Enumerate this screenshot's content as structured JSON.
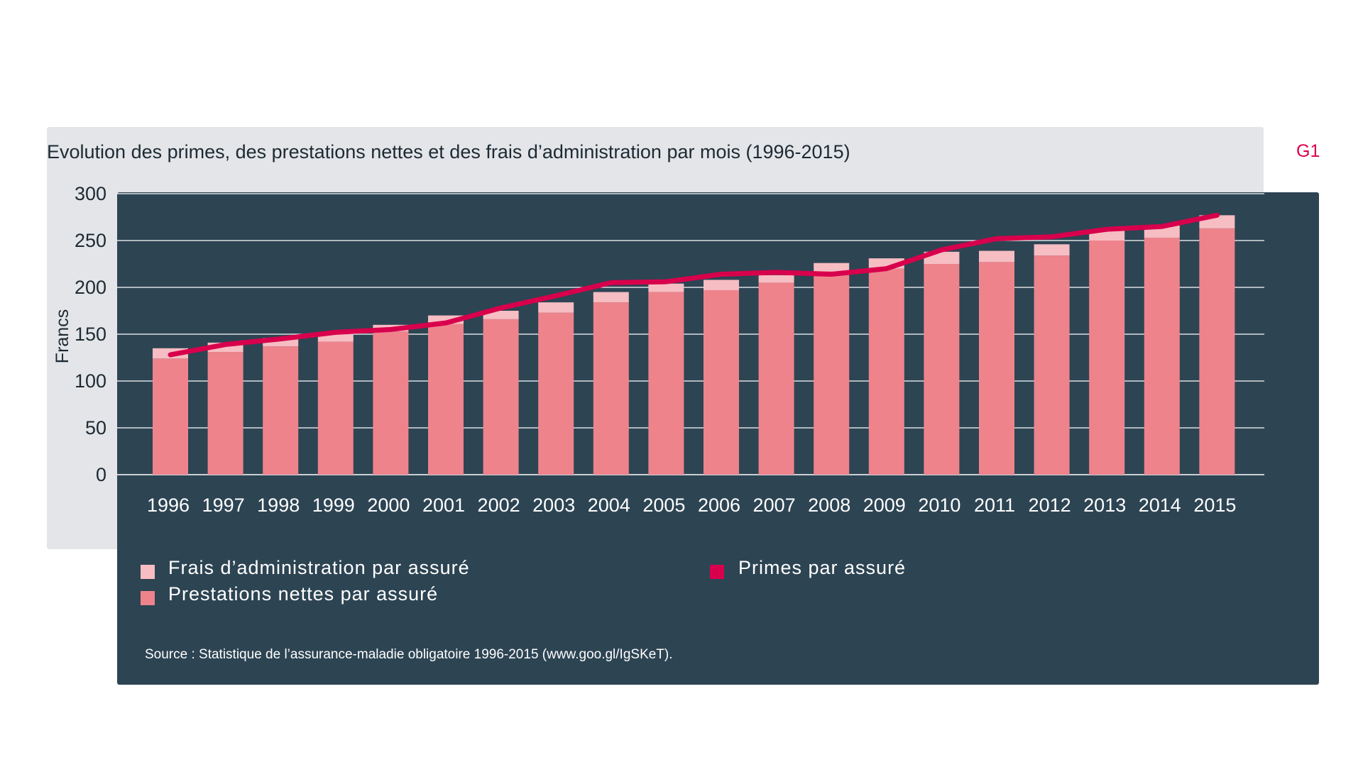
{
  "figure": {
    "title": "Evolution des primes, des prestations nettes et des frais d’administration par mois (1996-2015)",
    "code": "G1",
    "source": "Source : Statistique de l’assurance-maladie obligatoire 1996-2015 (www.goo.gl/IgSKeT)."
  },
  "colors": {
    "prestations": "#ee838c",
    "frais": "#f6bdc2",
    "primes": "#d8004c",
    "panel_dark": "#2a4251",
    "panel_light": "#e3e5e8",
    "gridline": "#ffffff"
  },
  "chart_data": {
    "type": "bar",
    "ylabel": "Francs",
    "xlabel": "",
    "ylim": [
      0,
      300
    ],
    "yticks": [
      0,
      50,
      100,
      150,
      200,
      250,
      300
    ],
    "categories": [
      "1996",
      "1997",
      "1998",
      "1999",
      "2000",
      "2001",
      "2002",
      "2003",
      "2004",
      "2005",
      "2006",
      "2007",
      "2008",
      "2009",
      "2010",
      "2011",
      "2012",
      "2013",
      "2014",
      "2015"
    ],
    "series": [
      {
        "name": "Prestations nettes par assuré",
        "kind": "bar-stack",
        "values": [
          124,
          131,
          137,
          142,
          153,
          161,
          166,
          173,
          184,
          195,
          197,
          205,
          217,
          220,
          225,
          227,
          234,
          250,
          253,
          263
        ]
      },
      {
        "name": "Frais d’administration par assuré",
        "kind": "bar-stack",
        "values": [
          11,
          10,
          9,
          8,
          7,
          9,
          9,
          11,
          11,
          9,
          11,
          8,
          9,
          11,
          13,
          12,
          12,
          11,
          13,
          14
        ]
      },
      {
        "name": "Primes par assuré",
        "kind": "line",
        "values": [
          128,
          139,
          145,
          152,
          155,
          162,
          178,
          191,
          205,
          206,
          214,
          216,
          214,
          220,
          240,
          252,
          254,
          262,
          265,
          277
        ]
      }
    ],
    "legend": {
      "placement": "bottom",
      "items": [
        {
          "label": "Frais d’administration par assuré",
          "color_key": "frais"
        },
        {
          "label": "Prestations nettes par assuré",
          "color_key": "prestations"
        },
        {
          "label": "Primes par assuré",
          "color_key": "primes"
        }
      ]
    },
    "grid": true
  }
}
